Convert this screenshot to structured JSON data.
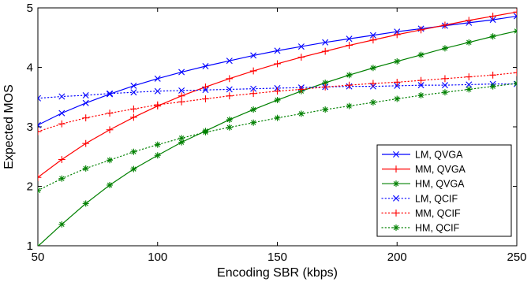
{
  "chart_data": {
    "type": "line",
    "xlabel": "Encoding SBR (kbps)",
    "ylabel": "Expected MOS",
    "xlim": [
      50,
      250
    ],
    "ylim": [
      1,
      5
    ],
    "xticks": [
      50,
      100,
      150,
      200,
      250
    ],
    "yticks": [
      1,
      2,
      3,
      4,
      5
    ],
    "x": [
      50,
      60,
      70,
      80,
      90,
      100,
      110,
      120,
      130,
      140,
      150,
      160,
      170,
      180,
      190,
      200,
      210,
      220,
      230,
      240,
      250
    ],
    "grid": false,
    "legend_position": "bottom-right",
    "series": [
      {
        "name": "LM, QVGA",
        "color": "#0000ff",
        "line": "solid",
        "marker": "x",
        "values": [
          3.03,
          3.23,
          3.4,
          3.55,
          3.69,
          3.81,
          3.92,
          4.02,
          4.11,
          4.2,
          4.28,
          4.35,
          4.42,
          4.48,
          4.54,
          4.6,
          4.65,
          4.7,
          4.75,
          4.8,
          4.86
        ]
      },
      {
        "name": "MM, QVGA",
        "color": "#ff0000",
        "line": "solid",
        "marker": "+",
        "values": [
          2.15,
          2.45,
          2.72,
          2.95,
          3.16,
          3.35,
          3.52,
          3.67,
          3.81,
          3.94,
          4.06,
          4.17,
          4.27,
          4.37,
          4.46,
          4.55,
          4.63,
          4.71,
          4.79,
          4.86,
          4.93
        ]
      },
      {
        "name": "HM, QVGA",
        "color": "#008000",
        "line": "solid",
        "marker": "*",
        "values": [
          0.99,
          1.36,
          1.71,
          2.02,
          2.29,
          2.52,
          2.74,
          2.93,
          3.12,
          3.29,
          3.45,
          3.6,
          3.74,
          3.87,
          3.99,
          4.1,
          4.21,
          4.32,
          4.42,
          4.52,
          4.61
        ]
      },
      {
        "name": "LM, QCIF",
        "color": "#0000ff",
        "line": "dotted",
        "marker": "x",
        "values": [
          3.48,
          3.51,
          3.53,
          3.56,
          3.58,
          3.6,
          3.61,
          3.62,
          3.63,
          3.64,
          3.65,
          3.66,
          3.67,
          3.68,
          3.68,
          3.69,
          3.7,
          3.7,
          3.71,
          3.72,
          3.72
        ]
      },
      {
        "name": "MM, QCIF",
        "color": "#ff0000",
        "line": "dotted",
        "marker": "+",
        "values": [
          2.92,
          3.05,
          3.15,
          3.23,
          3.3,
          3.37,
          3.42,
          3.47,
          3.52,
          3.56,
          3.6,
          3.63,
          3.67,
          3.7,
          3.73,
          3.75,
          3.78,
          3.81,
          3.84,
          3.87,
          3.91
        ]
      },
      {
        "name": "HM, QCIF",
        "color": "#008000",
        "line": "dotted",
        "marker": "*",
        "values": [
          1.93,
          2.13,
          2.3,
          2.44,
          2.58,
          2.7,
          2.81,
          2.91,
          2.99,
          3.07,
          3.15,
          3.22,
          3.29,
          3.35,
          3.41,
          3.47,
          3.53,
          3.58,
          3.63,
          3.68,
          3.73
        ]
      }
    ]
  }
}
